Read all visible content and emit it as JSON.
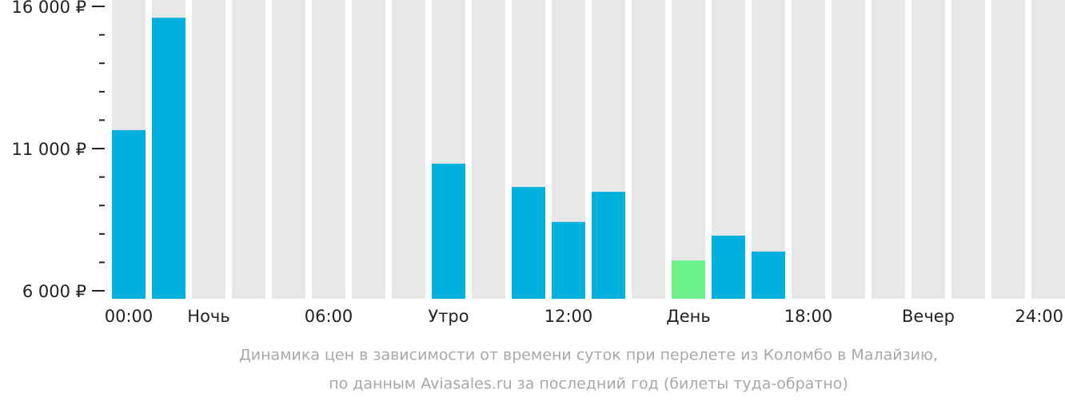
{
  "chart_data": {
    "type": "bar",
    "categories": [
      "00:00",
      null,
      "Ночь",
      null,
      null,
      "06:00",
      null,
      null,
      "Утро",
      null,
      null,
      "12:00",
      null,
      null,
      "День",
      null,
      null,
      "18:00",
      null,
      null,
      "Вечер",
      null,
      null,
      "24:00"
    ],
    "values": [
      11650,
      15600,
      null,
      null,
      null,
      null,
      null,
      null,
      10470,
      null,
      9650,
      8420,
      9480,
      null,
      7070,
      7940,
      7380,
      null,
      null,
      null,
      null,
      null,
      null,
      null
    ],
    "colors": [
      "#00b0dd",
      "#00b0dd",
      "#00b0dd",
      "#00b0dd",
      "#00b0dd",
      "#00b0dd",
      "#00b0dd",
      "#00b0dd",
      "#00b0dd",
      "#00b0dd",
      "#00b0dd",
      "#00b0dd",
      "#00b0dd",
      "#00b0dd",
      "#6ef08a",
      "#00b0dd",
      "#00b0dd",
      "#00b0dd",
      "#00b0dd",
      "#00b0dd",
      "#00b0dd",
      "#00b0dd",
      "#00b0dd",
      "#00b0dd"
    ],
    "background_color": "#e8e8e8",
    "ylim": [
      5720,
      16225
    ],
    "yticks": [
      {
        "value": 6000,
        "label": "6 000 ₽"
      },
      {
        "value": 11000,
        "label": "11 000 ₽"
      },
      {
        "value": 16000,
        "label": "16 000 ₽"
      }
    ],
    "minor_yticks": [
      7000,
      8000,
      9000,
      10000,
      12000,
      13000,
      14000,
      15000
    ],
    "caption": [
      "Динамика цен в зависимости от времени суток при перелете из Коломбо в Малайзию,",
      "по данным Aviasales.ru за последний год (билеты туда-обратно)"
    ]
  }
}
